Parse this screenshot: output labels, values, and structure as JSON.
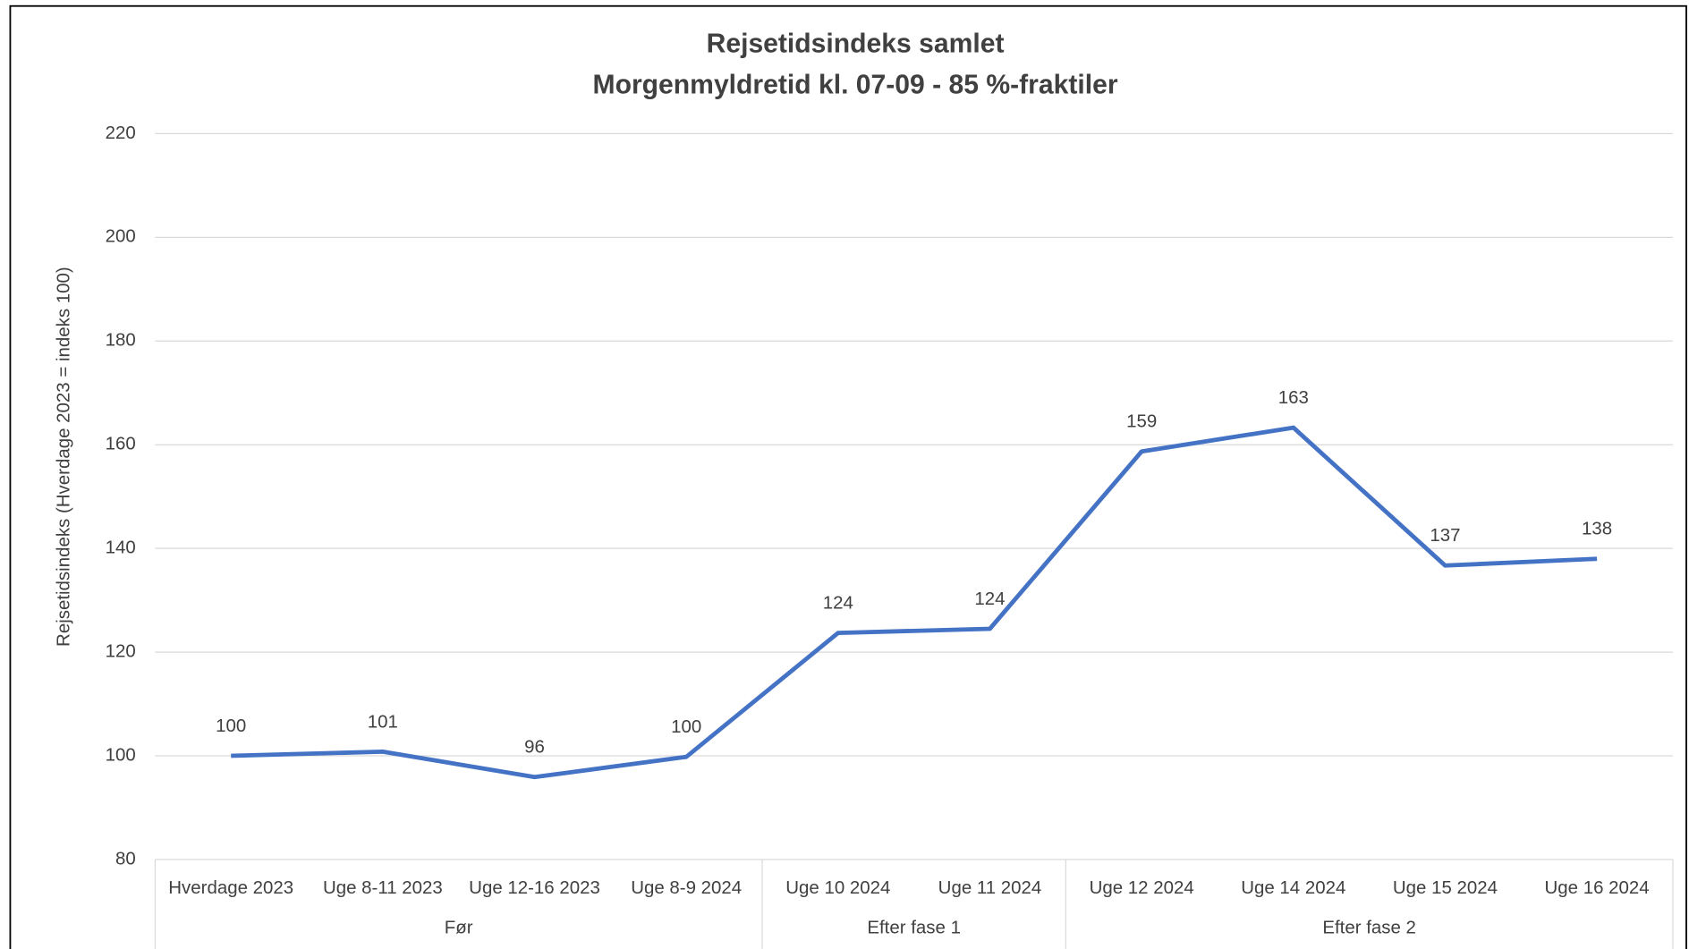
{
  "chart_data": {
    "type": "line",
    "title": "Rejsetidsindeks samlet",
    "subtitle": "Morgenmyldretid kl. 07-09 - 85 %-fraktiler",
    "y_label": "Rejsetidsindeks (Hverdage 2023 = indeks 100)",
    "categories": [
      "Hverdage 2023",
      "Uge 8-11 2023",
      "Uge 12-16 2023",
      "Uge 8-9 2024",
      "Uge 10 2024",
      "Uge 11 2024",
      "Uge 12 2024",
      "Uge 14 2024",
      "Uge 15 2024",
      "Uge 16 2024"
    ],
    "groups": [
      {
        "label": "Før",
        "count": 4
      },
      {
        "label": "Efter fase 1",
        "count": 2
      },
      {
        "label": "Efter fase 2",
        "count": 4
      }
    ],
    "series": [
      {
        "name": "Rejsetidsindeks",
        "color": "#4472c4",
        "values": [
          100,
          100.8,
          95.9,
          99.8,
          123.7,
          124.5,
          158.7,
          163.3,
          136.7,
          138.0
        ],
        "value_labels": [
          "100",
          "101",
          "96",
          "100",
          "124",
          "124",
          "159",
          "163",
          "137",
          "138"
        ]
      }
    ],
    "ylim": [
      80,
      220
    ],
    "yticks": [
      80,
      100,
      120,
      140,
      160,
      180,
      200,
      220
    ],
    "grid": true
  }
}
